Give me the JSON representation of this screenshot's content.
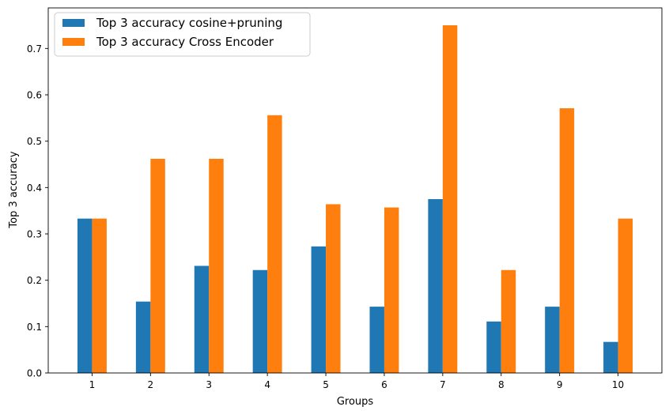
{
  "chart_data": {
    "type": "bar",
    "categories": [
      "1",
      "2",
      "3",
      "4",
      "5",
      "6",
      "7",
      "8",
      "9",
      "10"
    ],
    "series": [
      {
        "name": "Top 3 accuracy cosine+pruning",
        "color": "#1f77b4",
        "values": [
          0.333,
          0.154,
          0.231,
          0.222,
          0.273,
          0.143,
          0.375,
          0.111,
          0.143,
          0.067
        ]
      },
      {
        "name": "Top 3 accuracy Cross Encoder",
        "color": "#ff7f0e",
        "values": [
          0.333,
          0.462,
          0.462,
          0.556,
          0.364,
          0.357,
          0.75,
          0.222,
          0.571,
          0.333
        ]
      }
    ],
    "xlabel": "Groups",
    "ylabel": "Top 3 accuracy",
    "ylim": [
      0,
      0.7875
    ],
    "yticks": [
      "0.0",
      "0.1",
      "0.2",
      "0.3",
      "0.4",
      "0.5",
      "0.6",
      "0.7"
    ],
    "grid": false,
    "legend_position": "top-left"
  }
}
